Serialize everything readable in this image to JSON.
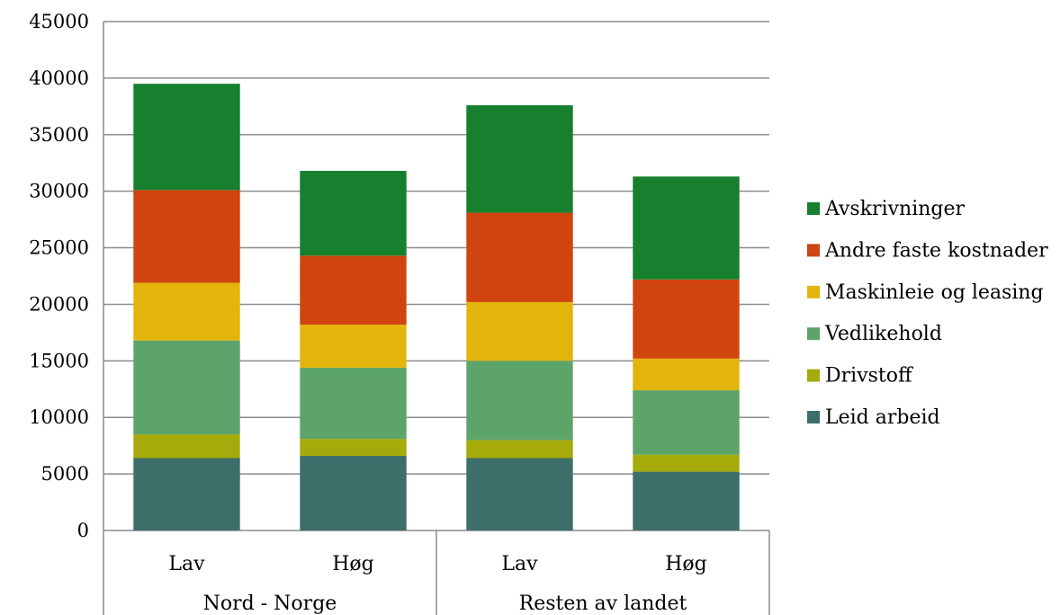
{
  "chart_data": {
    "type": "bar",
    "stacked": true,
    "title": "",
    "xlabel": "",
    "ylabel": "",
    "ylim": [
      0,
      45000
    ],
    "yticks": [
      0,
      5000,
      10000,
      15000,
      20000,
      25000,
      30000,
      35000,
      40000,
      45000
    ],
    "grid": true,
    "legend_position": "right",
    "categories": [
      "Lav",
      "Høg",
      "Lav",
      "Høg"
    ],
    "groups": [
      {
        "label": "Nord - Norge",
        "size": 2
      },
      {
        "label": "Resten av landet",
        "size": 2
      }
    ],
    "series": [
      {
        "name": "Leid arbeid",
        "color": "#3e6e6a",
        "values": [
          6400,
          6600,
          6400,
          5200
        ]
      },
      {
        "name": "Drivstoff",
        "color": "#a4ab0a",
        "values": [
          2100,
          1500,
          1600,
          1500
        ]
      },
      {
        "name": "Vedlikehold",
        "color": "#5da46b",
        "values": [
          8300,
          6300,
          7000,
          5700
        ]
      },
      {
        "name": "Maskinleie og leasing",
        "color": "#e3b50c",
        "values": [
          5100,
          3800,
          5200,
          2800
        ]
      },
      {
        "name": "Andre faste kostnader",
        "color": "#d0450f",
        "values": [
          8200,
          6100,
          7900,
          7000
        ]
      },
      {
        "name": "Avskrivninger",
        "color": "#17802e",
        "values": [
          9400,
          7500,
          9500,
          9100
        ]
      }
    ]
  }
}
